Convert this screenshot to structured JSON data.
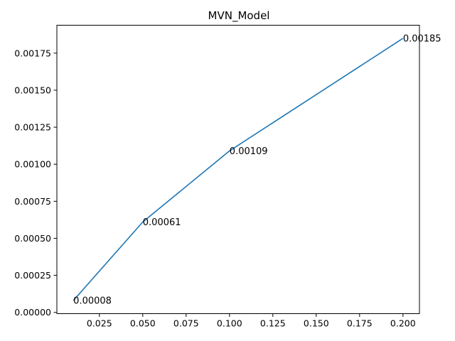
{
  "colors": {
    "series": "#1f77b4",
    "background": "#ffffff",
    "axis": "#000000"
  },
  "chart_data": {
    "type": "line",
    "title": "MVN_Model",
    "xlabel": "",
    "ylabel": "",
    "xlim": [
      0.0005,
      0.2095
    ],
    "ylim": [
      -8.5e-06,
      0.0019385
    ],
    "x_ticks": [
      0.025,
      0.05,
      0.075,
      0.1,
      0.125,
      0.15,
      0.175,
      0.2
    ],
    "x_tick_labels": [
      "0.025",
      "0.050",
      "0.075",
      "0.100",
      "0.125",
      "0.150",
      "0.175",
      "0.200"
    ],
    "y_ticks": [
      0,
      0.00025,
      0.0005,
      0.00075,
      0.001,
      0.00125,
      0.0015,
      0.00175
    ],
    "y_tick_labels": [
      "0.00000",
      "0.00025",
      "0.00050",
      "0.00075",
      "0.00100",
      "0.00125",
      "0.00150",
      "0.00175"
    ],
    "grid": false,
    "series": [
      {
        "x": [
          0.01,
          0.05,
          0.1,
          0.2
        ],
        "values": [
          8e-05,
          0.00061,
          0.00109,
          0.00185
        ],
        "labels": [
          "0.00008",
          "0.00061",
          "0.00109",
          "0.00185"
        ]
      }
    ]
  }
}
